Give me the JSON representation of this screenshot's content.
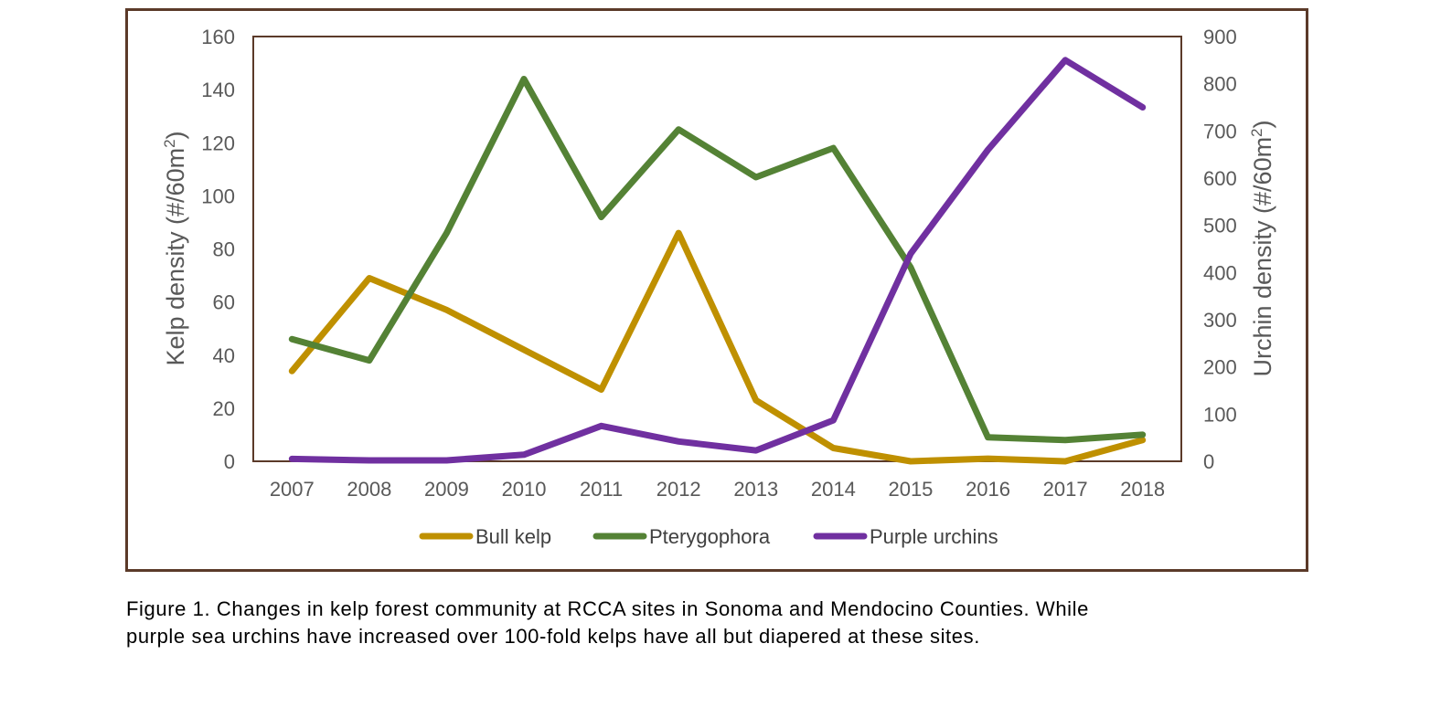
{
  "chart_data": {
    "type": "line",
    "categories": [
      "2007",
      "2008",
      "2009",
      "2010",
      "2011",
      "2012",
      "2013",
      "2014",
      "2015",
      "2016",
      "2017",
      "2018"
    ],
    "series": [
      {
        "name": "Bull kelp",
        "axis": "left",
        "color": "#bf9000",
        "values": [
          34,
          69,
          57,
          42,
          27,
          86,
          23,
          5,
          0,
          1,
          0,
          8
        ]
      },
      {
        "name": "Pterygophora",
        "axis": "left",
        "color": "#548235",
        "values": [
          46,
          38,
          86,
          144,
          92,
          125,
          107,
          118,
          73,
          9,
          8,
          10
        ]
      },
      {
        "name": "Purple urchins",
        "axis": "right",
        "color": "#7030a0",
        "values": [
          5,
          2,
          2,
          14,
          75,
          42,
          23,
          87,
          440,
          660,
          850,
          750
        ]
      }
    ],
    "ylabel_left": "Kelp density (#/60m",
    "ylabel_right": "Urchin density (#/60m",
    "ylabel_sup": "2",
    "ylabel_close": ")",
    "ylim_left": [
      0,
      160
    ],
    "ylim_right": [
      0,
      900
    ],
    "yticks_left": [
      "0",
      "20",
      "40",
      "60",
      "80",
      "100",
      "120",
      "140",
      "160"
    ],
    "yticks_right": [
      "0",
      "100",
      "200",
      "300",
      "400",
      "500",
      "600",
      "700",
      "800",
      "900"
    ],
    "grid": false,
    "legend_position": "bottom"
  },
  "caption": {
    "line1": "Figure 1. Changes in kelp forest community at RCCA sites in Sonoma and Mendocino Counties. While",
    "line2": "purple sea urchins have increased over 100-fold kelps have all but diapered at these sites."
  }
}
